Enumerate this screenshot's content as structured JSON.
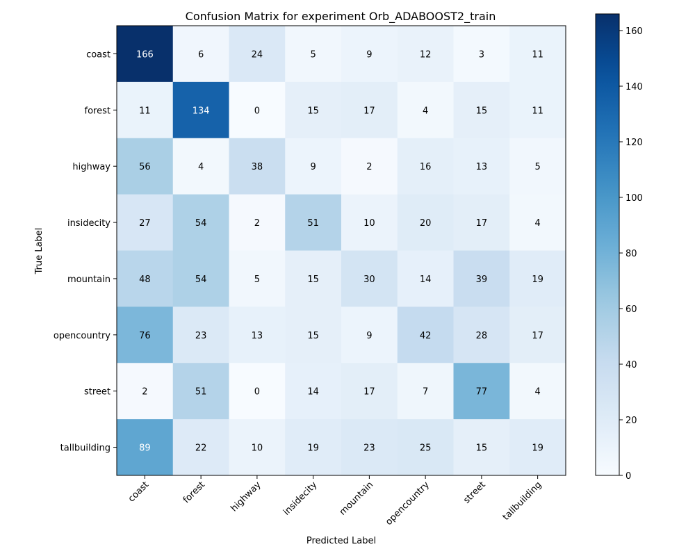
{
  "chart_data": {
    "type": "heatmap",
    "title": "Confusion Matrix for experiment Orb_ADABOOST2_train",
    "xlabel": "Predicted Label",
    "ylabel": "True Label",
    "x_categories": [
      "coast",
      "forest",
      "highway",
      "insidecity",
      "mountain",
      "opencountry",
      "street",
      "tallbuilding"
    ],
    "y_categories": [
      "coast",
      "forest",
      "highway",
      "insidecity",
      "mountain",
      "opencountry",
      "street",
      "tallbuilding"
    ],
    "values": [
      [
        166,
        6,
        24,
        5,
        9,
        12,
        3,
        11
      ],
      [
        11,
        134,
        0,
        15,
        17,
        4,
        15,
        11
      ],
      [
        56,
        4,
        38,
        9,
        2,
        16,
        13,
        5
      ],
      [
        27,
        54,
        2,
        51,
        10,
        20,
        17,
        4
      ],
      [
        48,
        54,
        5,
        15,
        30,
        14,
        39,
        19
      ],
      [
        76,
        23,
        13,
        15,
        9,
        42,
        28,
        17
      ],
      [
        2,
        51,
        0,
        14,
        17,
        7,
        77,
        4
      ],
      [
        89,
        22,
        10,
        19,
        23,
        25,
        15,
        19
      ]
    ],
    "colorscale": "Blues",
    "vmin": 0,
    "vmax": 166,
    "colorbar_ticks": [
      0,
      20,
      40,
      60,
      80,
      100,
      120,
      140,
      160
    ],
    "grid": false
  }
}
